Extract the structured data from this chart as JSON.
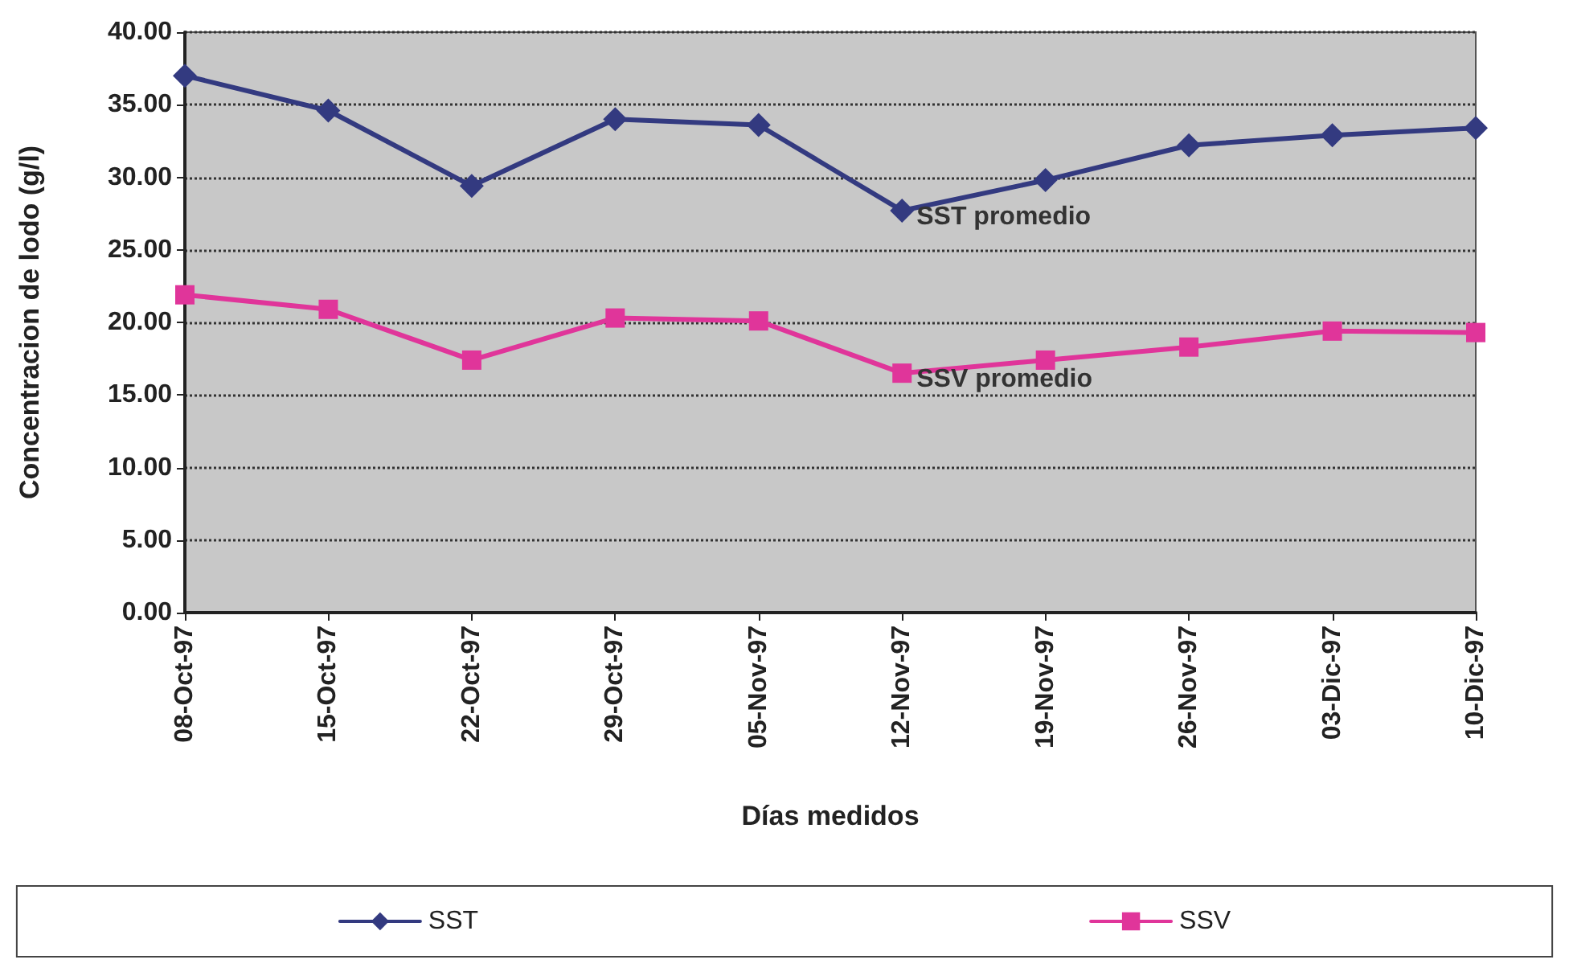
{
  "chart_data": {
    "type": "line",
    "xlabel": "Días medidos",
    "ylabel": "Concentracion de lodo (g/l)",
    "categories": [
      "08-Oct-97",
      "15-Oct-97",
      "22-Oct-97",
      "29-Oct-97",
      "05-Nov-97",
      "12-Nov-97",
      "19-Nov-97",
      "26-Nov-97",
      "03-Dic-97",
      "10-Dic-97"
    ],
    "series": [
      {
        "name": "SST",
        "color": "#333a80",
        "marker": "diamond",
        "values": [
          37.0,
          34.6,
          29.4,
          34.0,
          33.6,
          27.7,
          29.8,
          32.2,
          32.9,
          33.4
        ]
      },
      {
        "name": "SSV",
        "color": "#e0359a",
        "marker": "square",
        "values": [
          21.9,
          20.9,
          17.4,
          20.3,
          20.1,
          16.5,
          17.4,
          18.3,
          19.4,
          19.3
        ]
      }
    ],
    "ylim": [
      0,
      40
    ],
    "yticks": [
      {
        "value": 0,
        "label": "0.00"
      },
      {
        "value": 5,
        "label": "5.00"
      },
      {
        "value": 10,
        "label": "10.00"
      },
      {
        "value": 15,
        "label": "15.00"
      },
      {
        "value": 20,
        "label": "20.00"
      },
      {
        "value": 25,
        "label": "25.00"
      },
      {
        "value": 30,
        "label": "30.00"
      },
      {
        "value": 35,
        "label": "35.00"
      },
      {
        "value": 40,
        "label": "40.00"
      }
    ],
    "annotations": [
      {
        "text": "SST promedio",
        "x": "12-Nov-97",
        "y": 27.7
      },
      {
        "text": "SSV promedio",
        "x": "12-Nov-97",
        "y": 16.5
      }
    ],
    "grid": "y",
    "legend": "bottom",
    "line_style": "solid"
  }
}
